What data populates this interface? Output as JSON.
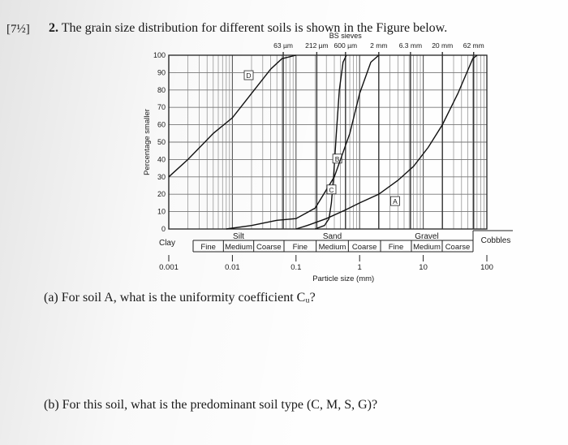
{
  "marks": "[7½]",
  "question": {
    "number": "2.",
    "text": "The grain size distribution for different soils is shown in the Figure below."
  },
  "sub_questions": [
    {
      "label": "(a)",
      "text": "For soil A, what is the uniformity coefficient Cᵤ?"
    },
    {
      "label": "(b)",
      "text": "For this soil, what is the predominant soil type (C, M, S, G)?"
    }
  ],
  "chart_data": {
    "type": "line",
    "title": "BS sieves",
    "xlabel": "Particle size (mm)",
    "ylabel": "Percentage smaller",
    "x_scale": "log",
    "xlim": [
      0.001,
      100
    ],
    "ylim": [
      0,
      100
    ],
    "y_ticks": [
      0,
      10,
      20,
      30,
      40,
      50,
      60,
      70,
      80,
      90,
      100
    ],
    "x_ticks": [
      {
        "value": 0.001,
        "label": "0.001"
      },
      {
        "value": 0.01,
        "label": "0.01"
      },
      {
        "value": 0.1,
        "label": "0.1"
      },
      {
        "value": 1,
        "label": "1"
      },
      {
        "value": 10,
        "label": "10"
      },
      {
        "value": 100,
        "label": "100"
      }
    ],
    "sieves": [
      {
        "size_mm": 0.063,
        "label": "63 µm"
      },
      {
        "size_mm": 0.212,
        "label": "212 µm"
      },
      {
        "size_mm": 0.6,
        "label": "600 µm"
      },
      {
        "size_mm": 2,
        "label": "2 mm"
      },
      {
        "size_mm": 6.3,
        "label": "6.3 mm"
      },
      {
        "size_mm": 20,
        "label": "20 mm"
      },
      {
        "size_mm": 62,
        "label": "62 mm"
      }
    ],
    "soil_classes": [
      {
        "name": "Clay",
        "from": 0.001,
        "to": 0.002
      },
      {
        "name": "Silt",
        "from": 0.002,
        "to": 0.06,
        "sub": [
          "Fine",
          "Medium",
          "Coarse"
        ]
      },
      {
        "name": "Sand",
        "from": 0.06,
        "to": 2,
        "sub": [
          "Fine",
          "Medium",
          "Coarse"
        ]
      },
      {
        "name": "Gravel",
        "from": 2,
        "to": 60,
        "sub": [
          "Fine",
          "Medium",
          "Coarse"
        ]
      },
      {
        "name": "Cobbles",
        "from": 60,
        "to": 200
      }
    ],
    "series": [
      {
        "name": "A",
        "points": [
          [
            0.1,
            0
          ],
          [
            0.15,
            2
          ],
          [
            0.3,
            6
          ],
          [
            0.6,
            11
          ],
          [
            1,
            15
          ],
          [
            2,
            20
          ],
          [
            4,
            28
          ],
          [
            7,
            36
          ],
          [
            12,
            47
          ],
          [
            20,
            60
          ],
          [
            35,
            78
          ],
          [
            60,
            98
          ],
          [
            70,
            100
          ]
        ]
      },
      {
        "name": "B",
        "points": [
          [
            0.2,
            0
          ],
          [
            0.28,
            2
          ],
          [
            0.33,
            6
          ],
          [
            0.36,
            15
          ],
          [
            0.39,
            30
          ],
          [
            0.43,
            55
          ],
          [
            0.48,
            80
          ],
          [
            0.55,
            96
          ],
          [
            0.62,
            100
          ]
        ]
      },
      {
        "name": "C",
        "points": [
          [
            0.008,
            0
          ],
          [
            0.02,
            2
          ],
          [
            0.05,
            5
          ],
          [
            0.1,
            6
          ],
          [
            0.2,
            12
          ],
          [
            0.4,
            30
          ],
          [
            0.7,
            55
          ],
          [
            1,
            78
          ],
          [
            1.5,
            96
          ],
          [
            2,
            100
          ]
        ]
      },
      {
        "name": "D",
        "points": [
          [
            0.001,
            30
          ],
          [
            0.002,
            40
          ],
          [
            0.005,
            55
          ],
          [
            0.01,
            64
          ],
          [
            0.02,
            78
          ],
          [
            0.04,
            92
          ],
          [
            0.06,
            98
          ],
          [
            0.1,
            100
          ]
        ]
      }
    ],
    "grid": true,
    "legend": "none"
  }
}
